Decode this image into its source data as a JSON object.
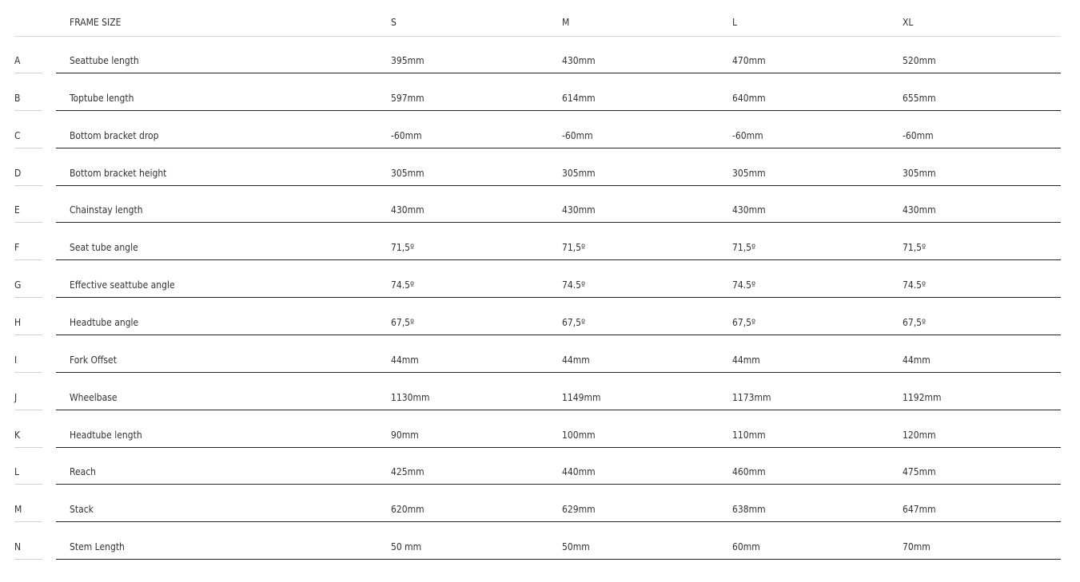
{
  "header": {
    "label": "FRAME SIZE",
    "sizes": [
      "S",
      "M",
      "L",
      "XL"
    ]
  },
  "rows": [
    {
      "letter": "A",
      "name": "Seattube length",
      "values": [
        "395mm",
        "430mm",
        "470mm",
        "520mm"
      ]
    },
    {
      "letter": "B",
      "name": "Toptube length",
      "values": [
        "597mm",
        "614mm",
        "640mm",
        "655mm"
      ]
    },
    {
      "letter": "C",
      "name": "Bottom bracket drop",
      "values": [
        "-60mm",
        "-60mm",
        "-60mm",
        "-60mm"
      ]
    },
    {
      "letter": "D",
      "name": "Bottom bracket height",
      "values": [
        "305mm",
        "305mm",
        "305mm",
        "305mm"
      ]
    },
    {
      "letter": "E",
      "name": "Chainstay length",
      "values": [
        "430mm",
        "430mm",
        "430mm",
        "430mm"
      ]
    },
    {
      "letter": "F",
      "name": "Seat tube angle",
      "values": [
        "71,5º",
        "71,5º",
        "71,5º",
        "71,5º"
      ]
    },
    {
      "letter": "G",
      "name": "Effective seattube angle",
      "values": [
        "74.5º",
        "74.5º",
        "74.5º",
        "74.5º"
      ]
    },
    {
      "letter": "H",
      "name": "Headtube angle",
      "values": [
        "67,5º",
        "67,5º",
        "67,5º",
        "67,5º"
      ]
    },
    {
      "letter": "I",
      "name": "Fork Offset",
      "values": [
        "44mm",
        "44mm",
        "44mm",
        "44mm"
      ]
    },
    {
      "letter": "J",
      "name": "Wheelbase",
      "values": [
        "1130mm",
        "1149mm",
        "1173mm",
        "1192mm"
      ]
    },
    {
      "letter": "K",
      "name": "Headtube length",
      "values": [
        "90mm",
        "100mm",
        "110mm",
        "120mm"
      ]
    },
    {
      "letter": "L",
      "name": "Reach",
      "values": [
        "425mm",
        "440mm",
        "460mm",
        "475mm"
      ]
    },
    {
      "letter": "M",
      "name": "Stack",
      "values": [
        "620mm",
        "629mm",
        "638mm",
        "647mm"
      ]
    },
    {
      "letter": "N",
      "name": "Stem Length",
      "values": [
        "50 mm",
        "50mm",
        "60mm",
        "70mm"
      ]
    }
  ]
}
